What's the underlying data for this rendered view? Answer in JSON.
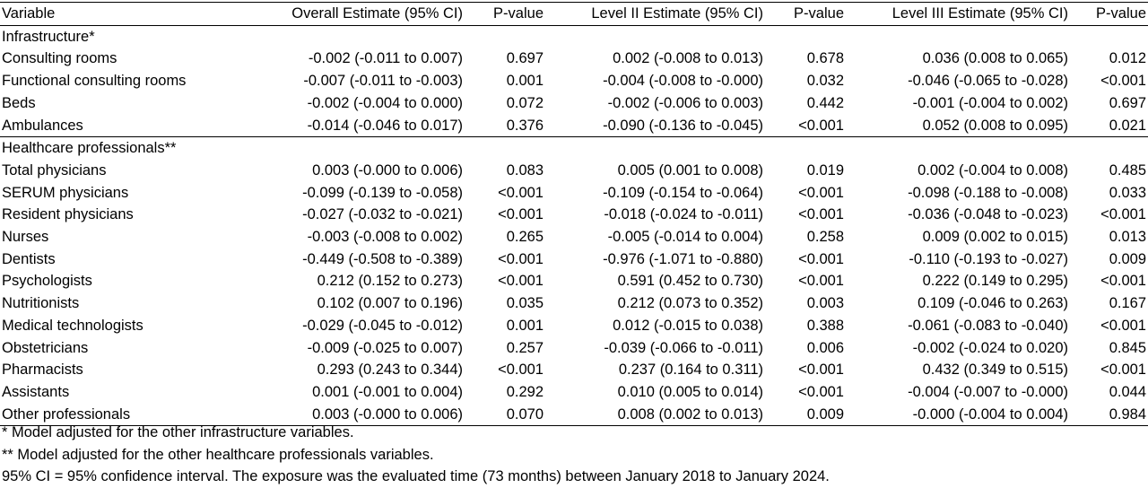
{
  "headers": [
    "Variable",
    "Overall Estimate (95% CI)",
    "P-value",
    "Level II Estimate (95% CI)",
    "P-value",
    "Level III Estimate (95% CI)",
    "P-value"
  ],
  "groups": [
    {
      "label": "Infrastructure*",
      "rows": [
        {
          "variable": "Consulting rooms",
          "cells": [
            {
              "text": "-0.002 (-0.011 to 0.007)",
              "bold": false
            },
            {
              "text": "0.697",
              "bold": false
            },
            {
              "text": "0.002 (-0.008 to 0.013)",
              "bold": false
            },
            {
              "text": "0.678",
              "bold": false
            },
            {
              "text": "0.036 (0.008 to 0.065)",
              "bold": true
            },
            {
              "text": "0.012",
              "bold": true
            }
          ]
        },
        {
          "variable": "Functional consulting rooms",
          "cells": [
            {
              "text": "-0.007 (-0.011 to -0.003)",
              "bold": true
            },
            {
              "text": "0.001",
              "bold": true
            },
            {
              "text": "-0.004 (-0.008 to -0.000)",
              "bold": true
            },
            {
              "text": "0.032",
              "bold": true
            },
            {
              "text": "-0.046 (-0.065 to -0.028)",
              "bold": true
            },
            {
              "text": "<0.001",
              "bold": true
            }
          ]
        },
        {
          "variable": "Beds",
          "cells": [
            {
              "text": "-0.002 (-0.004 to 0.000)",
              "bold": false
            },
            {
              "text": "0.072",
              "bold": false
            },
            {
              "text": "-0.002 (-0.006 to 0.003)",
              "bold": false
            },
            {
              "text": "0.442",
              "bold": false
            },
            {
              "text": "-0.001 (-0.004 to 0.002)",
              "bold": false
            },
            {
              "text": "0.697",
              "bold": false
            }
          ]
        },
        {
          "variable": "Ambulances",
          "cells": [
            {
              "text": "-0.014 (-0.046 to 0.017)",
              "bold": false
            },
            {
              "text": "0.376",
              "bold": false
            },
            {
              "text": "-0.090 (-0.136 to -0.045)",
              "bold": true
            },
            {
              "text": "<0.001",
              "bold": true
            },
            {
              "text": "0.052 (0.008 to 0.095)",
              "bold": true
            },
            {
              "text": "0.021",
              "bold": true
            }
          ]
        }
      ]
    },
    {
      "label": "Healthcare professionals**",
      "rows": [
        {
          "variable": "Total physicians",
          "cells": [
            {
              "text": "0.003 (-0.000 to 0.006)",
              "bold": false
            },
            {
              "text": "0.083",
              "bold": false
            },
            {
              "text": "0.005 (0.001 to 0.008)",
              "bold": true
            },
            {
              "text": "0.019",
              "bold": true
            },
            {
              "text": "0.002 (-0.004 to 0.008)",
              "bold": false
            },
            {
              "text": "0.485",
              "bold": false
            }
          ]
        },
        {
          "variable": "SERUM physicians",
          "cells": [
            {
              "text": "-0.099 (-0.139 to -0.058)",
              "bold": true
            },
            {
              "text": "<0.001",
              "bold": true
            },
            {
              "text": "-0.109 (-0.154 to -0.064)",
              "bold": true
            },
            {
              "text": "<0.001",
              "bold": true
            },
            {
              "text": "-0.098 (-0.188 to -0.008)",
              "bold": true
            },
            {
              "text": "0.033",
              "bold": true
            }
          ]
        },
        {
          "variable": "Resident physicians",
          "cells": [
            {
              "text": "-0.027 (-0.032 to -0.021)",
              "bold": true
            },
            {
              "text": "<0.001",
              "bold": true
            },
            {
              "text": "-0.018 (-0.024 to -0.011)",
              "bold": true
            },
            {
              "text": "<0.001",
              "bold": true
            },
            {
              "text": "-0.036 (-0.048 to -0.023)",
              "bold": true
            },
            {
              "text": "<0.001",
              "bold": true
            }
          ]
        },
        {
          "variable": "Nurses",
          "cells": [
            {
              "text": "-0.003 (-0.008 to 0.002)",
              "bold": false
            },
            {
              "text": "0.265",
              "bold": false
            },
            {
              "text": "-0.005 (-0.014 to 0.004)",
              "bold": false
            },
            {
              "text": "0.258",
              "bold": false
            },
            {
              "text": "0.009 (0.002 to 0.015)",
              "bold": true
            },
            {
              "text": "0.013",
              "bold": true
            }
          ]
        },
        {
          "variable": "Dentists",
          "cells": [
            {
              "text": "-0.449 (-0.508 to -0.389)",
              "bold": true
            },
            {
              "text": "<0.001",
              "bold": true
            },
            {
              "text": "-0.976 (-1.071 to -0.880)",
              "bold": true
            },
            {
              "text": "<0.001",
              "bold": true
            },
            {
              "text": "-0.110 (-0.193 to -0.027)",
              "bold": true
            },
            {
              "text": "0.009",
              "bold": true
            }
          ]
        },
        {
          "variable": "Psychologists",
          "cells": [
            {
              "text": "0.212 (0.152 to 0.273)",
              "bold": true
            },
            {
              "text": "<0.001",
              "bold": true
            },
            {
              "text": "0.591 (0.452 to 0.730)",
              "bold": true
            },
            {
              "text": "<0.001",
              "bold": true
            },
            {
              "text": "0.222 (0.149 to 0.295)",
              "bold": true
            },
            {
              "text": "<0.001",
              "bold": true
            }
          ]
        },
        {
          "variable": "Nutritionists",
          "cells": [
            {
              "text": "0.102 (0.007 to 0.196)",
              "bold": true
            },
            {
              "text": "0.035",
              "bold": true
            },
            {
              "text": "0.212 (0.073 to 0.352)",
              "bold": true
            },
            {
              "text": "0.003",
              "bold": true
            },
            {
              "text": "0.109 (-0.046 to 0.263)",
              "bold": false
            },
            {
              "text": "0.167",
              "bold": false
            }
          ]
        },
        {
          "variable": "Medical technologists",
          "cells": [
            {
              "text": "-0.029 (-0.045 to -0.012)",
              "bold": true
            },
            {
              "text": "0.001",
              "bold": true
            },
            {
              "text": "0.012 (-0.015 to 0.038)",
              "bold": false
            },
            {
              "text": "0.388",
              "bold": false
            },
            {
              "text": "-0.061 (-0.083 to -0.040)",
              "bold": true
            },
            {
              "text": "<0.001",
              "bold": true
            }
          ]
        },
        {
          "variable": "Obstetricians",
          "cells": [
            {
              "text": "-0.009 (-0.025 to 0.007)",
              "bold": false
            },
            {
              "text": "0.257",
              "bold": false
            },
            {
              "text": "-0.039 (-0.066 to -0.011)",
              "bold": true
            },
            {
              "text": "0.006",
              "bold": true
            },
            {
              "text": "-0.002 (-0.024 to 0.020)",
              "bold": false
            },
            {
              "text": "0.845",
              "bold": false
            }
          ]
        },
        {
          "variable": "Pharmacists",
          "cells": [
            {
              "text": "0.293 (0.243 to 0.344)",
              "bold": true
            },
            {
              "text": "<0.001",
              "bold": true
            },
            {
              "text": "0.237 (0.164 to 0.311)",
              "bold": true
            },
            {
              "text": "<0.001",
              "bold": true
            },
            {
              "text": "0.432 (0.349 to 0.515)",
              "bold": true
            },
            {
              "text": "<0.001",
              "bold": true
            }
          ]
        },
        {
          "variable": "Assistants",
          "cells": [
            {
              "text": "0.001 (-0.001 to 0.004)",
              "bold": false
            },
            {
              "text": "0.292",
              "bold": false
            },
            {
              "text": "0.010 (0.005 to 0.014)",
              "bold": true
            },
            {
              "text": "<0.001",
              "bold": true
            },
            {
              "text": "-0.004 (-0.007 to -0.000)",
              "bold": true
            },
            {
              "text": "0.044",
              "bold": true
            }
          ]
        },
        {
          "variable": "Other professionals",
          "cells": [
            {
              "text": "0.003 (-0.000 to 0.006)",
              "bold": false
            },
            {
              "text": "0.070",
              "bold": false
            },
            {
              "text": "0.008 (0.002 to 0.013)",
              "bold": true
            },
            {
              "text": "0.009",
              "bold": true
            },
            {
              "text": "-0.000 (-0.004 to 0.004)",
              "bold": false
            },
            {
              "text": "0.984",
              "bold": false
            }
          ]
        }
      ]
    }
  ],
  "footnotes": [
    "* Model adjusted for the other infrastructure variables.",
    "** Model adjusted for the other healthcare professionals variables.",
    "95% CI = 95% confidence interval. The exposure was the evaluated time (73 months) between January 2018 to January 2024."
  ]
}
